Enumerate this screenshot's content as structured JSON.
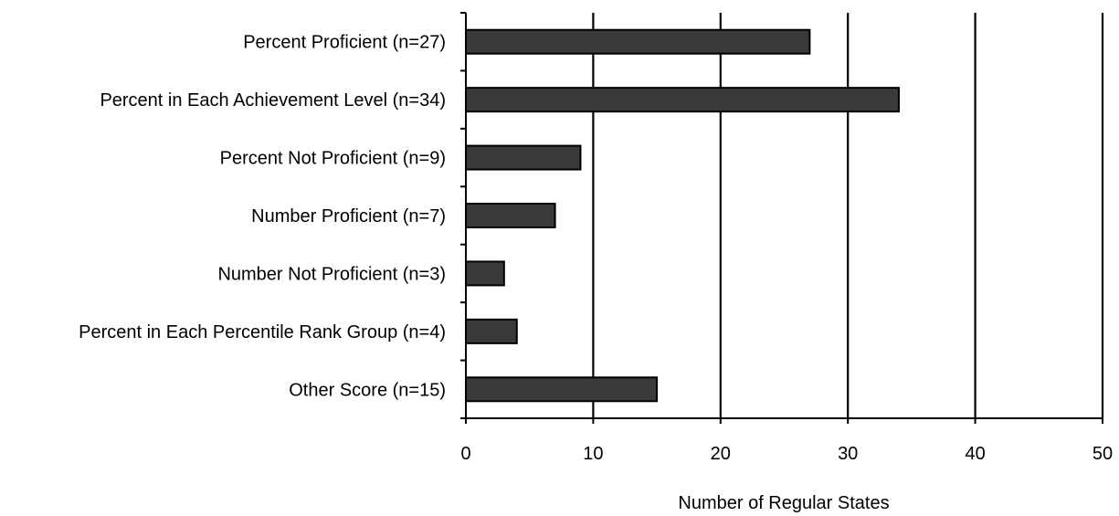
{
  "chart_data": {
    "type": "bar",
    "orientation": "horizontal",
    "categories": [
      "Percent Proficient (n=27)",
      "Percent in Each Achievement Level (n=34)",
      "Percent Not Proficient (n=9)",
      "Number Proficient (n=7)",
      "Number Not Proficient (n=3)",
      "Percent in Each Percentile Rank Group (n=4)",
      "Other Score (n=15)"
    ],
    "values": [
      27,
      34,
      9,
      7,
      3,
      4,
      15
    ],
    "xlabel": "Number of Regular States",
    "ylabel": "",
    "xlim": [
      0,
      50
    ],
    "xticks": [
      0,
      10,
      20,
      30,
      40,
      50
    ],
    "grid": "vertical",
    "bar_color": "#3a3a3a"
  }
}
